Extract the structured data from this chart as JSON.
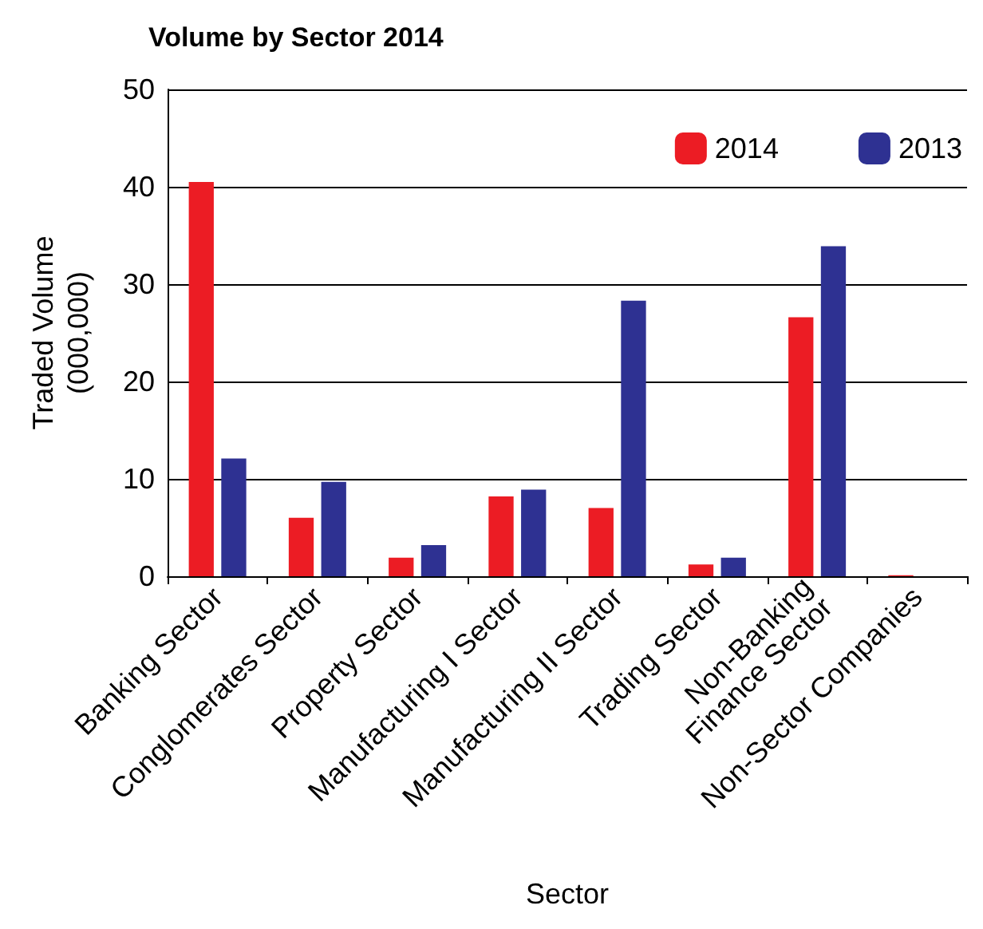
{
  "chart_data": {
    "type": "bar",
    "title": "Volume by Sector 2014",
    "xlabel": "Sector",
    "ylabel": "Traded Volume\n(000,000)",
    "categories": [
      "Banking Sector",
      "Conglomerates Sector",
      "Property Sector",
      "Manufacturing I Sector",
      "Manufacturing II Sector",
      "Trading Sector",
      "Non-Banking\nFinance Sector",
      "Non-Sector Companies"
    ],
    "series": [
      {
        "name": "2014",
        "color": "#ec1c24",
        "values": [
          40.5,
          6.0,
          1.9,
          8.2,
          7.0,
          1.2,
          26.6,
          0.1
        ]
      },
      {
        "name": "2013",
        "color": "#2e3192",
        "values": [
          12.1,
          9.7,
          3.2,
          8.9,
          28.3,
          1.9,
          33.9,
          0
        ]
      }
    ],
    "ylim": [
      0,
      50
    ],
    "yticks": [
      0,
      10,
      20,
      30,
      40,
      50
    ],
    "grid": "y",
    "legend": "top right"
  }
}
